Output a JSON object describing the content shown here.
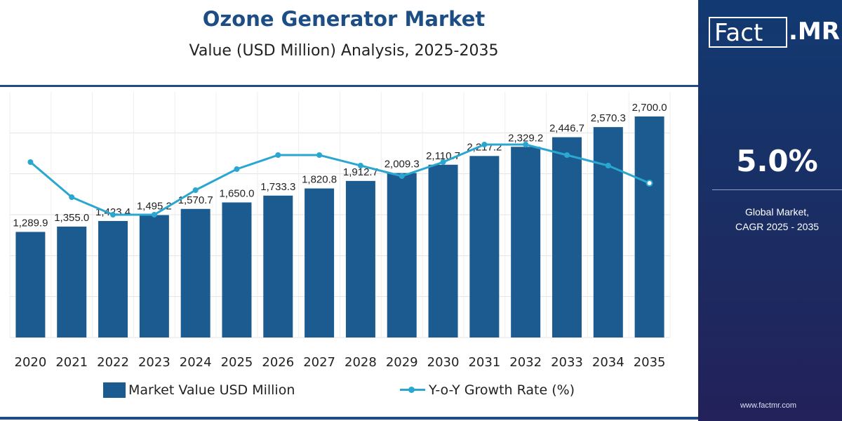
{
  "header": {
    "title": "Ozone Generator Market",
    "subtitle": "Value (USD Million) Analysis, 2025-2035"
  },
  "side_panel": {
    "logo_fact": "Fact",
    "logo_mr": ".MR",
    "cagr_value": "5.0%",
    "cagr_label_line1": "Global Market,",
    "cagr_label_line2": "CAGR 2025 - 2035",
    "website": "www.factmr.com"
  },
  "legend": {
    "bar_label": "Market Value USD Million",
    "line_label": "Y-o-Y Growth Rate (%)"
  },
  "colors": {
    "bar": "#1c5b8f",
    "line": "#2aa7d1",
    "title": "#1c4e85",
    "panel": "#1b2d63"
  },
  "chart_data": {
    "type": "bar",
    "categories": [
      "2020",
      "2021",
      "2022",
      "2023",
      "2024",
      "2025",
      "2026",
      "2027",
      "2028",
      "2029",
      "2030",
      "2031",
      "2032",
      "2033",
      "2034",
      "2035"
    ],
    "series": [
      {
        "name": "Market Value USD Million",
        "type": "bar",
        "values": [
          1289.9,
          1355.0,
          1423.4,
          1495.2,
          1570.7,
          1650.0,
          1733.3,
          1820.8,
          1912.7,
          2009.3,
          2110.7,
          2217.2,
          2329.2,
          2446.7,
          2570.3,
          2700.0
        ],
        "labels": [
          "1,289.9",
          "1,355.0",
          "1,423.4",
          "1,495.2",
          "1,570.7",
          "1,650.0",
          "1,733.3",
          "1,820.8",
          "1,912.7",
          "2,009.3",
          "2,110.7",
          "2,217.2",
          "2,329.2",
          "2,446.7",
          "2,570.3",
          "2,700.0"
        ]
      },
      {
        "name": "Y-o-Y Growth Rate (%)",
        "type": "line",
        "values": [
          5.1,
          5.0,
          4.95,
          4.95,
          5.02,
          5.08,
          5.12,
          5.12,
          5.09,
          5.06,
          5.1,
          5.15,
          5.15,
          5.12,
          5.09,
          5.04
        ]
      }
    ],
    "ylim": [
      0,
      3000
    ],
    "y2lim": [
      4.6,
      5.3
    ],
    "grid": true,
    "legend_position": "bottom"
  }
}
